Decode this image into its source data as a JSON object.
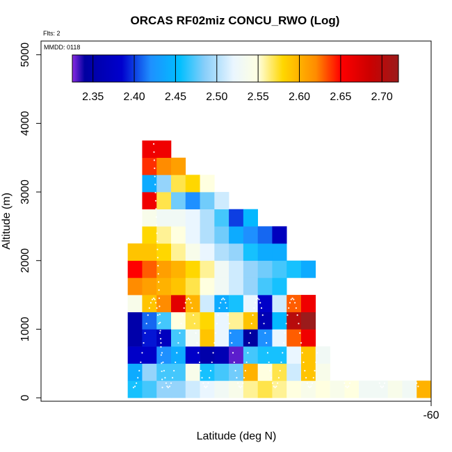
{
  "chart_data": {
    "type": "heatmap",
    "title": "ORCAS RF02miz CONCU_RWO (Log)",
    "flights_label": "Flts: 2",
    "mmdd_label": "MMDD: 0118",
    "xlabel": "Latitude (deg N)",
    "ylabel": "Altitude (m)",
    "xlim": [
      -73.5,
      -60
    ],
    "ylim": [
      -50,
      5200
    ],
    "x_ticks": [
      {
        "value": -60,
        "label": "-60"
      }
    ],
    "y_ticks": [
      {
        "value": 0,
        "label": "0"
      },
      {
        "value": 1000,
        "label": "1000"
      },
      {
        "value": 2000,
        "label": "2000"
      },
      {
        "value": 3000,
        "label": "3000"
      },
      {
        "value": 4000,
        "label": "4000"
      },
      {
        "value": 5000,
        "label": "5000"
      }
    ],
    "colorbar": {
      "min": 2.325,
      "max": 2.72,
      "ticks": [
        2.35,
        2.4,
        2.45,
        2.5,
        2.55,
        2.6,
        2.65,
        2.7
      ],
      "tick_labels": [
        "2.35",
        "2.40",
        "2.45",
        "2.50",
        "2.55",
        "2.60",
        "2.65",
        "2.70"
      ],
      "stops": [
        {
          "v": 2.325,
          "c": "#8a2be2"
        },
        {
          "v": 2.34,
          "c": "#0000a0"
        },
        {
          "v": 2.385,
          "c": "#0000cd"
        },
        {
          "v": 2.42,
          "c": "#1e90ff"
        },
        {
          "v": 2.455,
          "c": "#00bfff"
        },
        {
          "v": 2.485,
          "c": "#87cefa"
        },
        {
          "v": 2.52,
          "c": "#eaf6ff"
        },
        {
          "v": 2.55,
          "c": "#ffffe0"
        },
        {
          "v": 2.58,
          "c": "#ffd700"
        },
        {
          "v": 2.62,
          "c": "#ff8c00"
        },
        {
          "v": 2.65,
          "c": "#ff0000"
        },
        {
          "v": 2.685,
          "c": "#cc0000"
        },
        {
          "v": 2.72,
          "c": "#9b1b1b"
        }
      ]
    },
    "cell_width_deg": 0.5,
    "cell_height_m": 250,
    "cells": [
      {
        "lon": -70.5,
        "alt": 0,
        "v": 2.46
      },
      {
        "lon": -70.0,
        "alt": 0,
        "v": 2.47
      },
      {
        "lon": -69.5,
        "alt": 0,
        "v": 2.49
      },
      {
        "lon": -69.0,
        "alt": 0,
        "v": 2.49
      },
      {
        "lon": -68.5,
        "alt": 0,
        "v": 2.51
      },
      {
        "lon": -68.0,
        "alt": 0,
        "v": 2.52
      },
      {
        "lon": -67.5,
        "alt": 0,
        "v": 2.53
      },
      {
        "lon": -67.0,
        "alt": 0,
        "v": 2.54
      },
      {
        "lon": -66.5,
        "alt": 0,
        "v": 2.56
      },
      {
        "lon": -66.0,
        "alt": 0,
        "v": 2.57
      },
      {
        "lon": -65.5,
        "alt": 0,
        "v": 2.56
      },
      {
        "lon": -65.0,
        "alt": 0,
        "v": 2.55
      },
      {
        "lon": -64.5,
        "alt": 0,
        "v": 2.54
      },
      {
        "lon": -64.0,
        "alt": 0,
        "v": 2.55
      },
      {
        "lon": -63.5,
        "alt": 0,
        "v": 2.54
      },
      {
        "lon": -63.0,
        "alt": 0,
        "v": 2.55
      },
      {
        "lon": -62.5,
        "alt": 0,
        "v": 2.53
      },
      {
        "lon": -62.0,
        "alt": 0,
        "v": 2.53
      },
      {
        "lon": -61.5,
        "alt": 0,
        "v": 2.54
      },
      {
        "lon": -61.0,
        "alt": 0,
        "v": 2.53
      },
      {
        "lon": -60.5,
        "alt": 0,
        "v": 2.6
      },
      {
        "lon": -70.5,
        "alt": 250,
        "v": 2.44
      },
      {
        "lon": -70.0,
        "alt": 250,
        "v": 2.49
      },
      {
        "lon": -69.5,
        "alt": 250,
        "v": 2.47
      },
      {
        "lon": -69.0,
        "alt": 250,
        "v": 2.47
      },
      {
        "lon": -68.5,
        "alt": 250,
        "v": 2.54
      },
      {
        "lon": -68.0,
        "alt": 250,
        "v": 2.46
      },
      {
        "lon": -67.5,
        "alt": 250,
        "v": 2.47
      },
      {
        "lon": -67.0,
        "alt": 250,
        "v": 2.48
      },
      {
        "lon": -66.5,
        "alt": 250,
        "v": 2.6
      },
      {
        "lon": -66.0,
        "alt": 250,
        "v": 2.55
      },
      {
        "lon": -65.5,
        "alt": 250,
        "v": 2.57
      },
      {
        "lon": -65.0,
        "alt": 250,
        "v": 2.51
      },
      {
        "lon": -64.5,
        "alt": 250,
        "v": 2.59
      },
      {
        "lon": -64.0,
        "alt": 250,
        "v": 2.54
      },
      {
        "lon": -70.5,
        "alt": 500,
        "v": 2.38
      },
      {
        "lon": -70.0,
        "alt": 500,
        "v": 2.38
      },
      {
        "lon": -69.5,
        "alt": 500,
        "v": 2.42
      },
      {
        "lon": -69.0,
        "alt": 500,
        "v": 2.44
      },
      {
        "lon": -68.5,
        "alt": 500,
        "v": 2.38
      },
      {
        "lon": -68.0,
        "alt": 500,
        "v": 2.35
      },
      {
        "lon": -67.5,
        "alt": 500,
        "v": 2.36
      },
      {
        "lon": -67.0,
        "alt": 500,
        "v": 2.33
      },
      {
        "lon": -66.5,
        "alt": 500,
        "v": 2.47
      },
      {
        "lon": -66.0,
        "alt": 500,
        "v": 2.46
      },
      {
        "lon": -65.5,
        "alt": 500,
        "v": 2.46
      },
      {
        "lon": -65.0,
        "alt": 500,
        "v": 2.52
      },
      {
        "lon": -64.5,
        "alt": 500,
        "v": 2.59
      },
      {
        "lon": -64.0,
        "alt": 500,
        "v": 2.53
      },
      {
        "lon": -70.5,
        "alt": 750,
        "v": 2.35
      },
      {
        "lon": -70.0,
        "alt": 750,
        "v": 2.39
      },
      {
        "lon": -69.5,
        "alt": 750,
        "v": 2.37
      },
      {
        "lon": -69.0,
        "alt": 750,
        "v": 2.47
      },
      {
        "lon": -68.5,
        "alt": 750,
        "v": 2.53
      },
      {
        "lon": -68.0,
        "alt": 750,
        "v": 2.59
      },
      {
        "lon": -67.5,
        "alt": 750,
        "v": 2.52
      },
      {
        "lon": -67.0,
        "alt": 750,
        "v": 2.42
      },
      {
        "lon": -66.5,
        "alt": 750,
        "v": 2.34
      },
      {
        "lon": -66.0,
        "alt": 750,
        "v": 2.42
      },
      {
        "lon": -65.5,
        "alt": 750,
        "v": 2.52
      },
      {
        "lon": -65.0,
        "alt": 750,
        "v": 2.63
      },
      {
        "lon": -64.5,
        "alt": 750,
        "v": 2.66
      },
      {
        "lon": -70.5,
        "alt": 1000,
        "v": 2.35
      },
      {
        "lon": -70.0,
        "alt": 1000,
        "v": 2.41
      },
      {
        "lon": -69.5,
        "alt": 1000,
        "v": 2.47
      },
      {
        "lon": -69.0,
        "alt": 1000,
        "v": 2.55
      },
      {
        "lon": -68.5,
        "alt": 1000,
        "v": 2.57
      },
      {
        "lon": -68.0,
        "alt": 1000,
        "v": 2.58
      },
      {
        "lon": -67.5,
        "alt": 1000,
        "v": 2.52
      },
      {
        "lon": -67.0,
        "alt": 1000,
        "v": 2.56
      },
      {
        "lon": -66.5,
        "alt": 1000,
        "v": 2.59
      },
      {
        "lon": -66.0,
        "alt": 1000,
        "v": 2.36
      },
      {
        "lon": -65.5,
        "alt": 1000,
        "v": 2.45
      },
      {
        "lon": -65.0,
        "alt": 1000,
        "v": 2.7
      },
      {
        "lon": -64.5,
        "alt": 1000,
        "v": 2.72
      },
      {
        "lon": -70.5,
        "alt": 1250,
        "v": 2.54
      },
      {
        "lon": -70.0,
        "alt": 1250,
        "v": 2.59
      },
      {
        "lon": -69.5,
        "alt": 1250,
        "v": 2.62
      },
      {
        "lon": -69.0,
        "alt": 1250,
        "v": 2.67
      },
      {
        "lon": -68.5,
        "alt": 1250,
        "v": 2.6
      },
      {
        "lon": -68.0,
        "alt": 1250,
        "v": 2.51
      },
      {
        "lon": -67.5,
        "alt": 1250,
        "v": 2.44
      },
      {
        "lon": -67.0,
        "alt": 1250,
        "v": 2.46
      },
      {
        "lon": -66.5,
        "alt": 1250,
        "v": 2.52
      },
      {
        "lon": -66.0,
        "alt": 1250,
        "v": 2.38
      },
      {
        "lon": -65.5,
        "alt": 1250,
        "v": 2.51
      },
      {
        "lon": -65.0,
        "alt": 1250,
        "v": 2.63
      },
      {
        "lon": -64.5,
        "alt": 1250,
        "v": 2.66
      },
      {
        "lon": -70.5,
        "alt": 1500,
        "v": 2.62
      },
      {
        "lon": -70.0,
        "alt": 1500,
        "v": 2.61
      },
      {
        "lon": -69.5,
        "alt": 1500,
        "v": 2.6
      },
      {
        "lon": -69.0,
        "alt": 1500,
        "v": 2.59
      },
      {
        "lon": -68.5,
        "alt": 1500,
        "v": 2.57
      },
      {
        "lon": -68.0,
        "alt": 1500,
        "v": 2.55
      },
      {
        "lon": -67.5,
        "alt": 1500,
        "v": 2.53
      },
      {
        "lon": -67.0,
        "alt": 1500,
        "v": 2.51
      },
      {
        "lon": -66.5,
        "alt": 1500,
        "v": 2.49
      },
      {
        "lon": -66.0,
        "alt": 1500,
        "v": 2.47
      },
      {
        "lon": -65.5,
        "alt": 1500,
        "v": 2.46
      },
      {
        "lon": -70.5,
        "alt": 1750,
        "v": 2.65
      },
      {
        "lon": -70.0,
        "alt": 1750,
        "v": 2.63
      },
      {
        "lon": -69.5,
        "alt": 1750,
        "v": 2.61
      },
      {
        "lon": -69.0,
        "alt": 1750,
        "v": 2.6
      },
      {
        "lon": -68.5,
        "alt": 1750,
        "v": 2.58
      },
      {
        "lon": -68.0,
        "alt": 1750,
        "v": 2.56
      },
      {
        "lon": -67.5,
        "alt": 1750,
        "v": 2.53
      },
      {
        "lon": -67.0,
        "alt": 1750,
        "v": 2.51
      },
      {
        "lon": -66.5,
        "alt": 1750,
        "v": 2.49
      },
      {
        "lon": -66.0,
        "alt": 1750,
        "v": 2.48
      },
      {
        "lon": -65.5,
        "alt": 1750,
        "v": 2.47
      },
      {
        "lon": -65.0,
        "alt": 1750,
        "v": 2.46
      },
      {
        "lon": -64.5,
        "alt": 1750,
        "v": 2.44
      },
      {
        "lon": -70.5,
        "alt": 2000,
        "v": 2.59
      },
      {
        "lon": -70.0,
        "alt": 2000,
        "v": 2.59
      },
      {
        "lon": -69.5,
        "alt": 2000,
        "v": 2.58
      },
      {
        "lon": -69.0,
        "alt": 2000,
        "v": 2.56
      },
      {
        "lon": -68.5,
        "alt": 2000,
        "v": 2.54
      },
      {
        "lon": -68.0,
        "alt": 2000,
        "v": 2.52
      },
      {
        "lon": -67.5,
        "alt": 2000,
        "v": 2.5
      },
      {
        "lon": -67.0,
        "alt": 2000,
        "v": 2.49
      },
      {
        "lon": -66.5,
        "alt": 2000,
        "v": 2.46
      },
      {
        "lon": -66.0,
        "alt": 2000,
        "v": 2.44
      },
      {
        "lon": -65.5,
        "alt": 2000,
        "v": 2.44
      },
      {
        "lon": -70.0,
        "alt": 2250,
        "v": 2.58
      },
      {
        "lon": -69.5,
        "alt": 2250,
        "v": 2.56
      },
      {
        "lon": -69.0,
        "alt": 2250,
        "v": 2.55
      },
      {
        "lon": -68.5,
        "alt": 2250,
        "v": 2.52
      },
      {
        "lon": -68.0,
        "alt": 2250,
        "v": 2.5
      },
      {
        "lon": -67.5,
        "alt": 2250,
        "v": 2.48
      },
      {
        "lon": -67.0,
        "alt": 2250,
        "v": 2.44
      },
      {
        "lon": -66.5,
        "alt": 2250,
        "v": 2.42
      },
      {
        "lon": -66.0,
        "alt": 2250,
        "v": 2.41
      },
      {
        "lon": -65.5,
        "alt": 2250,
        "v": 2.37
      },
      {
        "lon": -70.0,
        "alt": 2500,
        "v": 2.54
      },
      {
        "lon": -69.5,
        "alt": 2500,
        "v": 2.53
      },
      {
        "lon": -69.0,
        "alt": 2500,
        "v": 2.53
      },
      {
        "lon": -68.5,
        "alt": 2500,
        "v": 2.52
      },
      {
        "lon": -68.0,
        "alt": 2500,
        "v": 2.5
      },
      {
        "lon": -67.5,
        "alt": 2500,
        "v": 2.47
      },
      {
        "lon": -67.0,
        "alt": 2500,
        "v": 2.4
      },
      {
        "lon": -66.5,
        "alt": 2500,
        "v": 2.45
      },
      {
        "lon": -70.0,
        "alt": 2750,
        "v": 2.66
      },
      {
        "lon": -69.5,
        "alt": 2750,
        "v": 2.57
      },
      {
        "lon": -69.0,
        "alt": 2750,
        "v": 2.48
      },
      {
        "lon": -68.5,
        "alt": 2750,
        "v": 2.42
      },
      {
        "lon": -68.0,
        "alt": 2750,
        "v": 2.48
      },
      {
        "lon": -67.5,
        "alt": 2750,
        "v": 2.51
      },
      {
        "lon": -70.0,
        "alt": 3000,
        "v": 2.44
      },
      {
        "lon": -69.5,
        "alt": 3000,
        "v": 2.49
      },
      {
        "lon": -69.0,
        "alt": 3000,
        "v": 2.57
      },
      {
        "lon": -68.5,
        "alt": 3000,
        "v": 2.58
      },
      {
        "lon": -68.0,
        "alt": 3000,
        "v": 2.55
      },
      {
        "lon": -70.0,
        "alt": 3250,
        "v": 2.64
      },
      {
        "lon": -69.5,
        "alt": 3250,
        "v": 2.62
      },
      {
        "lon": -69.0,
        "alt": 3250,
        "v": 2.61
      },
      {
        "lon": -70.0,
        "alt": 3500,
        "v": 2.66
      },
      {
        "lon": -69.5,
        "alt": 3500,
        "v": 2.66
      }
    ]
  }
}
